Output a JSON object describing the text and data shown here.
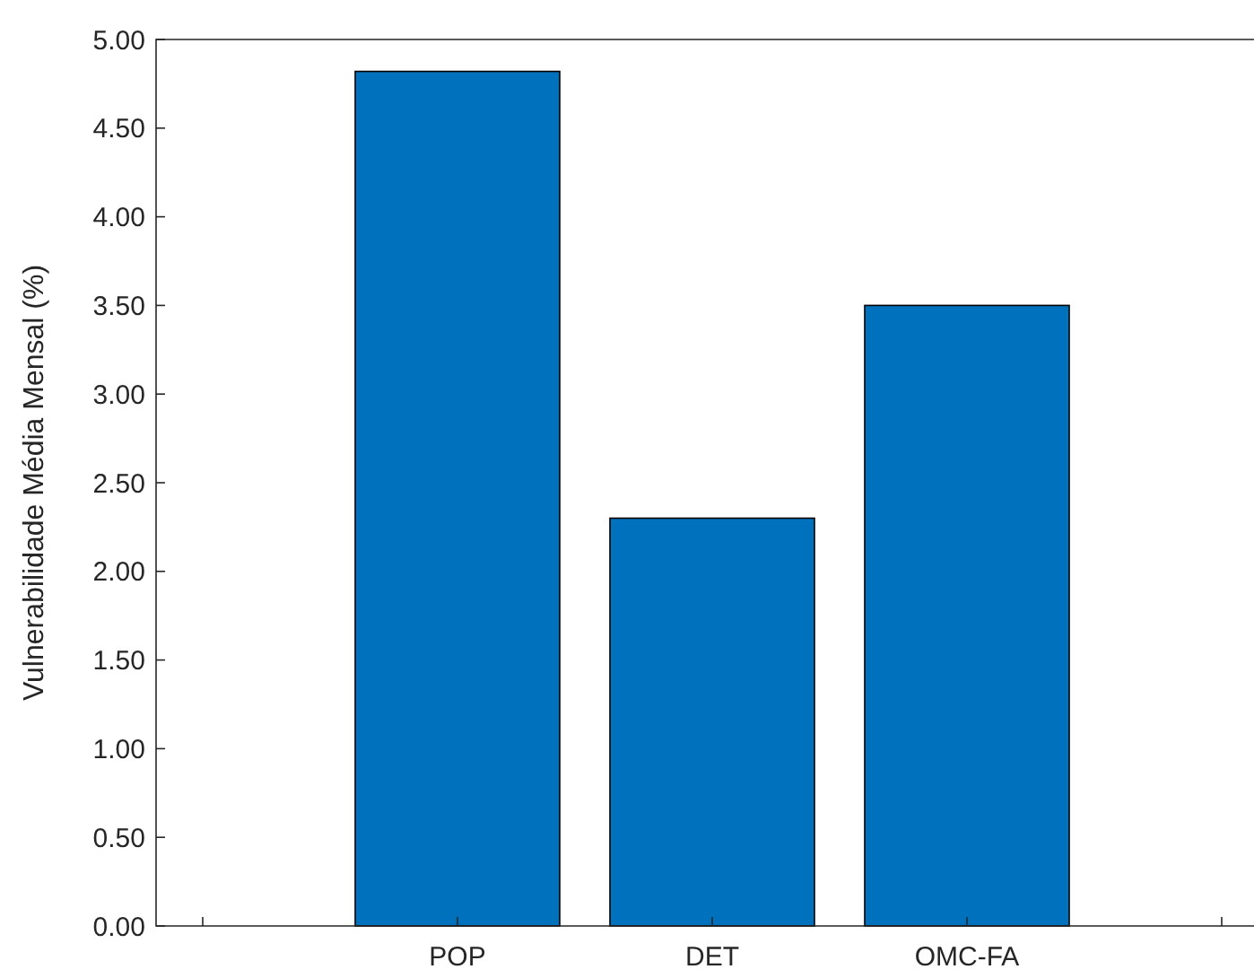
{
  "chart_data": {
    "type": "bar",
    "ylabel": "Vulnerabilidade Média Mensal (%)",
    "categories": [
      null,
      "POP",
      "DET",
      "OMC-FA",
      null
    ],
    "values": [
      null,
      4.82,
      2.3,
      3.5,
      null
    ],
    "color": "#0072bd",
    "ylim": [
      0,
      5
    ],
    "yticks": [
      {
        "value": 0,
        "label": "0.00"
      },
      {
        "value": 0.5,
        "label": "0.50"
      },
      {
        "value": 1,
        "label": "1.00"
      },
      {
        "value": 1.5,
        "label": "1.50"
      },
      {
        "value": 2,
        "label": "2.00"
      },
      {
        "value": 2.5,
        "label": "2.50"
      },
      {
        "value": 3,
        "label": "3.00"
      },
      {
        "value": 3.5,
        "label": "3.50"
      },
      {
        "value": 4,
        "label": "4.00"
      },
      {
        "value": 4.5,
        "label": "4.50"
      },
      {
        "value": 5,
        "label": "5.00"
      }
    ]
  }
}
